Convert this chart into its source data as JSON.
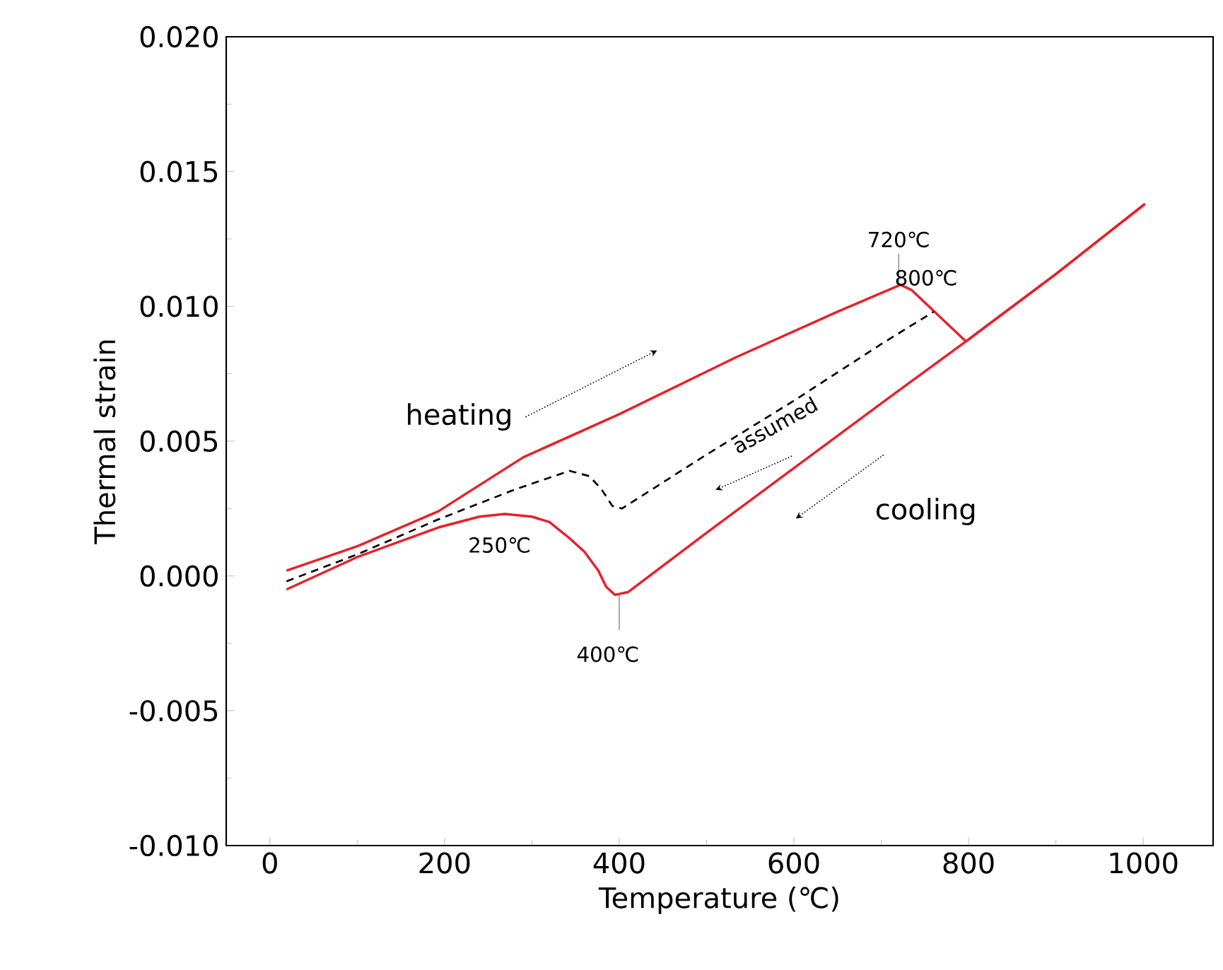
{
  "chart_data": {
    "type": "line",
    "xlabel": "Temperature (℃)",
    "ylabel": "Thermal strain",
    "xlim": [
      -50,
      1080
    ],
    "ylim": [
      -0.01,
      0.02
    ],
    "xticks": [
      0,
      200,
      400,
      600,
      800,
      1000
    ],
    "yticks": [
      {
        "value": -0.01,
        "label": "-0.010"
      },
      {
        "value": -0.005,
        "label": "-0.005"
      },
      {
        "value": 0,
        "label": "0.000"
      },
      {
        "value": 0.005,
        "label": "0.005"
      },
      {
        "value": 0.01,
        "label": "0.010"
      },
      {
        "value": 0.015,
        "label": "0.015"
      },
      {
        "value": 0.02,
        "label": "0.020"
      }
    ],
    "series": [
      {
        "color": "#e8202a",
        "line_style": "solid",
        "x": [
          19,
          100,
          193,
          290,
          400,
          533,
          650,
          722,
          735,
          797,
          900,
          1002
        ],
        "values": [
          0.0002,
          0.0011,
          0.0024,
          0.0044,
          0.006,
          0.0081,
          0.0098,
          0.0108,
          0.0106,
          0.0087,
          0.0112,
          0.0138
        ]
      },
      {
        "color": "#e8202a",
        "line_style": "solid",
        "x": [
          1002,
          900,
          797,
          700,
          600,
          500,
          410,
          395,
          385,
          376,
          360,
          343,
          320,
          300,
          269,
          240,
          193,
          100,
          19
        ],
        "values": [
          0.0138,
          0.0112,
          0.0087,
          0.0064,
          0.004,
          0.0016,
          -0.0006,
          -0.0007,
          -0.0004,
          0.0002,
          0.0009,
          0.0014,
          0.002,
          0.0022,
          0.0023,
          0.0022,
          0.0018,
          0.0007,
          -0.0005
        ]
      },
      {
        "color": "#000000",
        "line_style": "dashed",
        "x": [
          19,
          100,
          193,
          280,
          343,
          366,
          380,
          392,
          403,
          500,
          600,
          700,
          760
        ],
        "values": [
          -0.0002,
          0.0008,
          0.0021,
          0.0032,
          0.0039,
          0.0037,
          0.0032,
          0.0026,
          0.0025,
          0.0045,
          0.0065,
          0.0086,
          0.0098
        ]
      }
    ],
    "annotations": [
      "heating",
      "assumed",
      "cooling",
      {
        "text": "720℃",
        "x": 720,
        "y": 0.0108
      },
      {
        "text": "800℃",
        "x": 800,
        "y": 0.0087
      },
      {
        "text": "250℃",
        "x": 250,
        "y": 0.0023
      },
      {
        "text": "400℃",
        "x": 400,
        "y": -0.0007
      }
    ]
  }
}
